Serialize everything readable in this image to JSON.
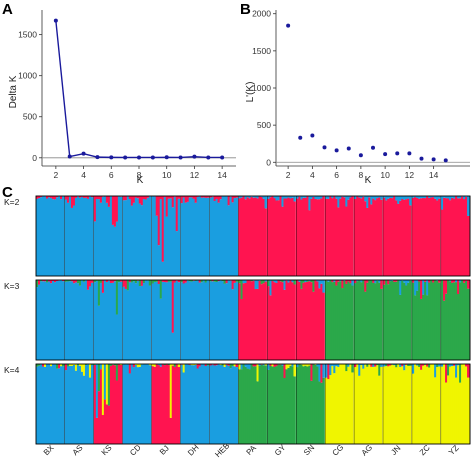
{
  "panel_labels": {
    "a": "A",
    "b": "B",
    "c": "C"
  },
  "colors": {
    "blue": "#1a9ee0",
    "red": "#ff1450",
    "green": "#2ba84a",
    "yellow": "#f0f500",
    "line": "#1a1a9c"
  },
  "chart_data": [
    {
      "type": "line",
      "panel": "A",
      "xlabel": "K",
      "ylabel": "Delta K",
      "xlim": [
        1,
        15
      ],
      "ylim": [
        -100,
        1800
      ],
      "xticks": [
        2,
        4,
        6,
        8,
        10,
        12,
        14
      ],
      "yticks": [
        0,
        500,
        1000,
        1500
      ],
      "reference_line": 0,
      "grid": false,
      "x": [
        2,
        3,
        4,
        5,
        6,
        7,
        8,
        9,
        10,
        11,
        12,
        13,
        14
      ],
      "y": [
        1670,
        15,
        50,
        8,
        5,
        4,
        4,
        4,
        6,
        4,
        14,
        4,
        4
      ]
    },
    {
      "type": "scatter",
      "panel": "B",
      "xlabel": "K",
      "ylabel": "L'(K)",
      "xlim": [
        1,
        17
      ],
      "ylim": [
        -50,
        2050
      ],
      "xticks": [
        2,
        4,
        6,
        8,
        10,
        12,
        14
      ],
      "yticks": [
        0,
        500,
        1000,
        1500,
        2000
      ],
      "reference_line": 0,
      "grid": false,
      "x": [
        2,
        3,
        4,
        5,
        6,
        7,
        8,
        9,
        10,
        11,
        12,
        13,
        14,
        15
      ],
      "y": [
        1840,
        330,
        360,
        200,
        160,
        185,
        95,
        195,
        110,
        120,
        120,
        50,
        40,
        25
      ]
    },
    {
      "type": "bar",
      "panel": "C",
      "subtype": "stacked admixture proportions",
      "populations": [
        "BX",
        "AS",
        "KS",
        "CD",
        "BJ",
        "DH",
        "HEB",
        "PA",
        "GY",
        "SN",
        "CG",
        "AG",
        "JN",
        "ZC",
        "YZ"
      ],
      "rows": [
        {
          "label": "K=2",
          "dominant_cluster": [
            "blue",
            "blue",
            "blue",
            "blue",
            "blue",
            "blue",
            "blue",
            "red",
            "red",
            "red",
            "red",
            "red",
            "red",
            "red",
            "red"
          ]
        },
        {
          "label": "K=3",
          "dominant_cluster": [
            "blue",
            "blue",
            "blue",
            "blue",
            "blue",
            "blue",
            "blue",
            "red",
            "red",
            "red",
            "green",
            "green",
            "green",
            "green",
            "green"
          ]
        },
        {
          "label": "K=4",
          "dominant_cluster": [
            "blue",
            "blue",
            "red",
            "blue",
            "red",
            "blue",
            "blue",
            "green",
            "green",
            "green",
            "yellow",
            "yellow",
            "yellow",
            "yellow",
            "yellow"
          ]
        }
      ]
    }
  ]
}
